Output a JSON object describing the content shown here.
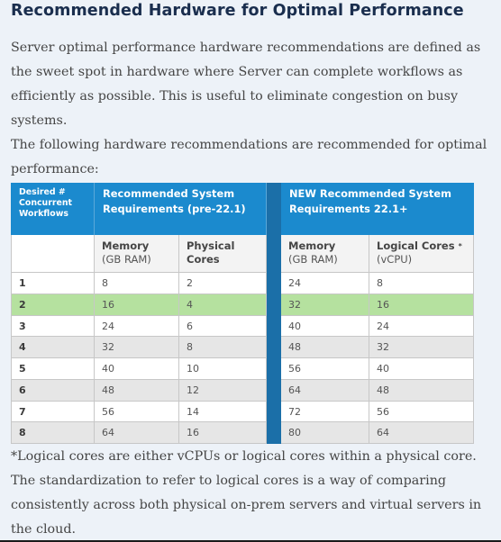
{
  "title": "Recommended Hardware for Optimal Performance",
  "intro": "Server optimal performance hardware recommendations are defined as the sweet spot in hardware where Server can complete workflows as efficiently as possible. This is useful to eliminate congestion on busy systems.",
  "lead": "The following hardware recommendations are recommended for optimal performance:",
  "footnote": "*Logical cores are either vCPUs or logical cores within a physical core. The standardization to refer to logical cores is a way of comparing consistently across both physical on-prem servers and virtual servers in the cloud.",
  "colors": {
    "header_blue": "#1b8ace",
    "divider_blue": "#1b6fa8",
    "highlight_row": "#b5e19f",
    "alt_row": "#e6e6e6",
    "title": "#1a2e4e"
  },
  "table": {
    "headers": {
      "workflows": "Desired # Concurrent Workflows",
      "old_group": "Recommended System Requirements (pre-22.1)",
      "new_group": "NEW Recommended System Requirements 22.1+"
    },
    "subheaders": {
      "old_memory": "Memory",
      "old_memory_unit": "(GB RAM)",
      "old_cores": "Physical Cores",
      "new_memory": "Memory",
      "new_memory_unit": "(GB RAM)",
      "new_cores": "Logical Cores",
      "new_cores_star": "*",
      "new_cores_unit": "(vCPU)"
    },
    "rows": [
      {
        "workflows": "1",
        "old_memory": "8",
        "old_cores": "2",
        "new_memory": "24",
        "new_cores": "8"
      },
      {
        "workflows": "2",
        "old_memory": "16",
        "old_cores": "4",
        "new_memory": "32",
        "new_cores": "16"
      },
      {
        "workflows": "3",
        "old_memory": "24",
        "old_cores": "6",
        "new_memory": "40",
        "new_cores": "24"
      },
      {
        "workflows": "4",
        "old_memory": "32",
        "old_cores": "8",
        "new_memory": "48",
        "new_cores": "32"
      },
      {
        "workflows": "5",
        "old_memory": "40",
        "old_cores": "10",
        "new_memory": "56",
        "new_cores": "40"
      },
      {
        "workflows": "6",
        "old_memory": "48",
        "old_cores": "12",
        "new_memory": "64",
        "new_cores": "48"
      },
      {
        "workflows": "7",
        "old_memory": "56",
        "old_cores": "14",
        "new_memory": "72",
        "new_cores": "56"
      },
      {
        "workflows": "8",
        "old_memory": "64",
        "old_cores": "16",
        "new_memory": "80",
        "new_cores": "64"
      }
    ]
  }
}
